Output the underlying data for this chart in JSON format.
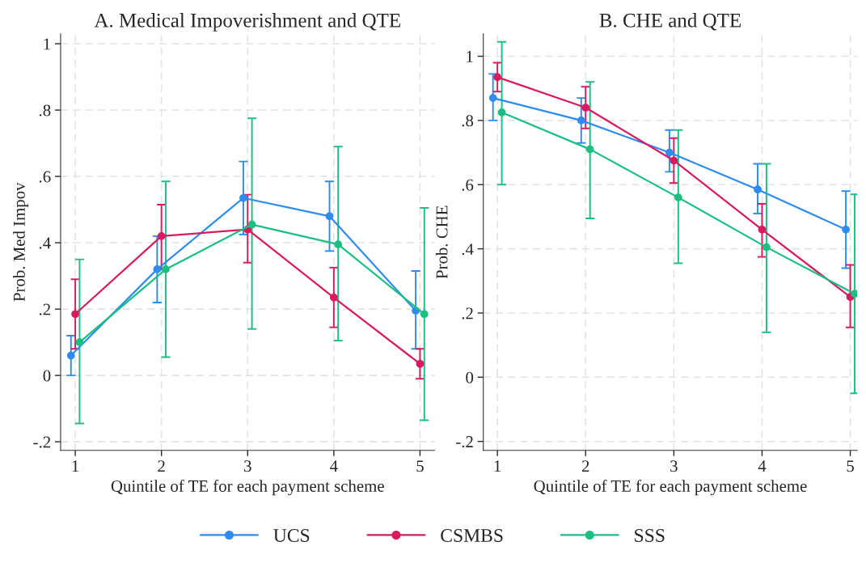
{
  "chart_data": [
    {
      "type": "line",
      "title": "A. Medical Impoverishment and QTE",
      "xlabel": "Quintile of TE for each payment scheme",
      "ylabel": "Prob. Med Impov",
      "xlim": [
        0.83,
        5.17
      ],
      "xticks": [
        1,
        2,
        3,
        4,
        5
      ],
      "ylim": [
        -0.226,
        1.03
      ],
      "yticks": [
        {
          "value": -0.2,
          "label": "-.2"
        },
        0,
        {
          "value": 0.2,
          "label": ".2"
        },
        {
          "value": 0.4,
          "label": ".4"
        },
        {
          "value": 0.6,
          "label": ".6"
        },
        {
          "value": 0.8,
          "label": ".8"
        },
        1
      ],
      "grid": true,
      "marker": "circle",
      "line_style": "solid",
      "legend": "bottom",
      "series": [
        {
          "name": "UCS",
          "color": "#2e8cf0",
          "x": [
            0.95,
            1.95,
            2.95,
            3.95,
            4.95
          ],
          "values": [
            0.06,
            0.32,
            0.535,
            0.48,
            0.195
          ],
          "errors": [
            [
              0.0,
              0.12
            ],
            [
              0.22,
              0.42
            ],
            [
              0.425,
              0.645
            ],
            [
              0.375,
              0.585
            ],
            [
              0.08,
              0.315
            ]
          ]
        },
        {
          "name": "CSMBS",
          "color": "#d81b60",
          "x": [
            1,
            2,
            3,
            4,
            5
          ],
          "values": [
            0.185,
            0.42,
            0.44,
            0.235,
            0.035
          ],
          "errors": [
            [
              0.08,
              0.29
            ],
            [
              0.32,
              0.515
            ],
            [
              0.34,
              0.545
            ],
            [
              0.145,
              0.325
            ],
            [
              -0.01,
              0.08
            ]
          ]
        },
        {
          "name": "SSS",
          "color": "#1cbf82",
          "x": [
            1.05,
            2.05,
            3.05,
            4.05,
            5.05
          ],
          "values": [
            0.1,
            0.32,
            0.455,
            0.395,
            0.185
          ],
          "errors": [
            [
              -0.145,
              0.35
            ],
            [
              0.055,
              0.585
            ],
            [
              0.14,
              0.775
            ],
            [
              0.105,
              0.69
            ],
            [
              -0.135,
              0.505
            ]
          ]
        }
      ]
    },
    {
      "type": "line",
      "title": "B. CHE and QTE",
      "xlabel": "Quintile of TE for each payment scheme",
      "ylabel": "Prob. CHE",
      "xlim": [
        0.84,
        5.08
      ],
      "xticks": [
        1,
        2,
        3,
        4,
        5
      ],
      "ylim": [
        -0.228,
        1.07
      ],
      "yticks": [
        {
          "value": -0.2,
          "label": "-.2"
        },
        0,
        {
          "value": 0.2,
          "label": ".2"
        },
        {
          "value": 0.4,
          "label": ".4"
        },
        {
          "value": 0.6,
          "label": ".6"
        },
        {
          "value": 0.8,
          "label": ".8"
        },
        1
      ],
      "grid": true,
      "marker": "circle",
      "line_style": "solid",
      "series": [
        {
          "name": "UCS",
          "color": "#2e8cf0",
          "x": [
            0.95,
            1.95,
            2.95,
            3.95,
            4.95
          ],
          "values": [
            0.87,
            0.8,
            0.7,
            0.585,
            0.46
          ],
          "errors": [
            [
              0.8,
              0.945
            ],
            [
              0.73,
              0.87
            ],
            [
              0.64,
              0.77
            ],
            [
              0.51,
              0.665
            ],
            [
              0.34,
              0.58
            ]
          ]
        },
        {
          "name": "CSMBS",
          "color": "#d81b60",
          "x": [
            1,
            2,
            3,
            4,
            5
          ],
          "values": [
            0.935,
            0.84,
            0.675,
            0.46,
            0.25
          ],
          "errors": [
            [
              0.89,
              0.98
            ],
            [
              0.775,
              0.905
            ],
            [
              0.605,
              0.745
            ],
            [
              0.375,
              0.54
            ],
            [
              0.155,
              0.35
            ]
          ]
        },
        {
          "name": "SSS",
          "color": "#1cbf82",
          "x": [
            1.05,
            2.05,
            3.05,
            4.05,
            5.05
          ],
          "values": [
            0.825,
            0.71,
            0.56,
            0.405,
            0.26
          ],
          "errors": [
            [
              0.6,
              1.045
            ],
            [
              0.495,
              0.92
            ],
            [
              0.355,
              0.77
            ],
            [
              0.14,
              0.665
            ],
            [
              -0.05,
              0.57
            ]
          ]
        }
      ]
    }
  ]
}
